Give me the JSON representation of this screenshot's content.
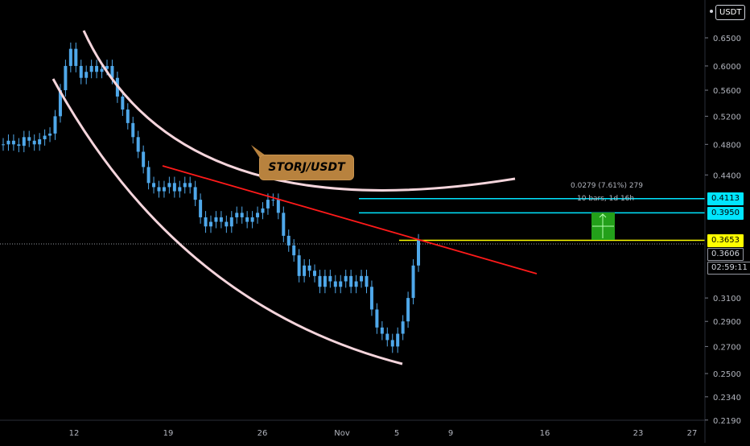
{
  "chart_data": {
    "type": "candlestick",
    "symbol": "STORJ/USDT",
    "quote_unit": "USDT",
    "y_scale": "log",
    "y_ticks": [
      "0.6500",
      "0.6000",
      "0.5600",
      "0.5200",
      "0.4800",
      "0.4400",
      "0.3100",
      "0.2900",
      "0.2700",
      "0.2500",
      "0.2340",
      "0.2190"
    ],
    "x_ticks": [
      "12",
      "19",
      "26",
      "Nov",
      "5",
      "9",
      "16",
      "23",
      "27"
    ],
    "price_tags": [
      {
        "label": "0.4113",
        "style": "cyan"
      },
      {
        "label": "0.3950",
        "style": "cyan"
      },
      {
        "label": "0.3653",
        "style": "yellow"
      },
      {
        "label": "0.3606",
        "style": "plain"
      },
      {
        "label": "02:59:11",
        "style": "plain"
      }
    ],
    "annotation": "STORJ/USDT",
    "measure": {
      "line1": "0.0279 (7.61%) 279",
      "line2": "10 bars, 1d 16h"
    },
    "horizontal_levels": [
      {
        "price": 0.4113,
        "color": "#00e5ff"
      },
      {
        "price": 0.395,
        "color": "#00e5ff"
      },
      {
        "price": 0.3653,
        "color": "#ffff00"
      }
    ],
    "trendline": {
      "color": "#ff1a1a"
    },
    "arc_color": "#f5d5dc",
    "candle_color": "#4fa8ea",
    "close_series_approx": [
      0.48,
      0.485,
      0.48,
      0.478,
      0.49,
      0.485,
      0.48,
      0.487,
      0.492,
      0.495,
      0.52,
      0.56,
      0.6,
      0.63,
      0.6,
      0.58,
      0.59,
      0.6,
      0.59,
      0.595,
      0.6,
      0.58,
      0.55,
      0.53,
      0.51,
      0.49,
      0.47,
      0.45,
      0.43,
      0.425,
      0.42,
      0.425,
      0.43,
      0.42,
      0.425,
      0.43,
      0.425,
      0.41,
      0.39,
      0.38,
      0.385,
      0.39,
      0.385,
      0.38,
      0.39,
      0.395,
      0.39,
      0.385,
      0.39,
      0.395,
      0.4,
      0.41,
      0.41,
      0.395,
      0.37,
      0.36,
      0.35,
      0.33,
      0.34,
      0.335,
      0.33,
      0.32,
      0.33,
      0.325,
      0.32,
      0.325,
      0.33,
      0.32,
      0.325,
      0.33,
      0.32,
      0.3,
      0.285,
      0.28,
      0.275,
      0.27,
      0.28,
      0.29,
      0.31,
      0.34,
      0.3653
    ]
  }
}
